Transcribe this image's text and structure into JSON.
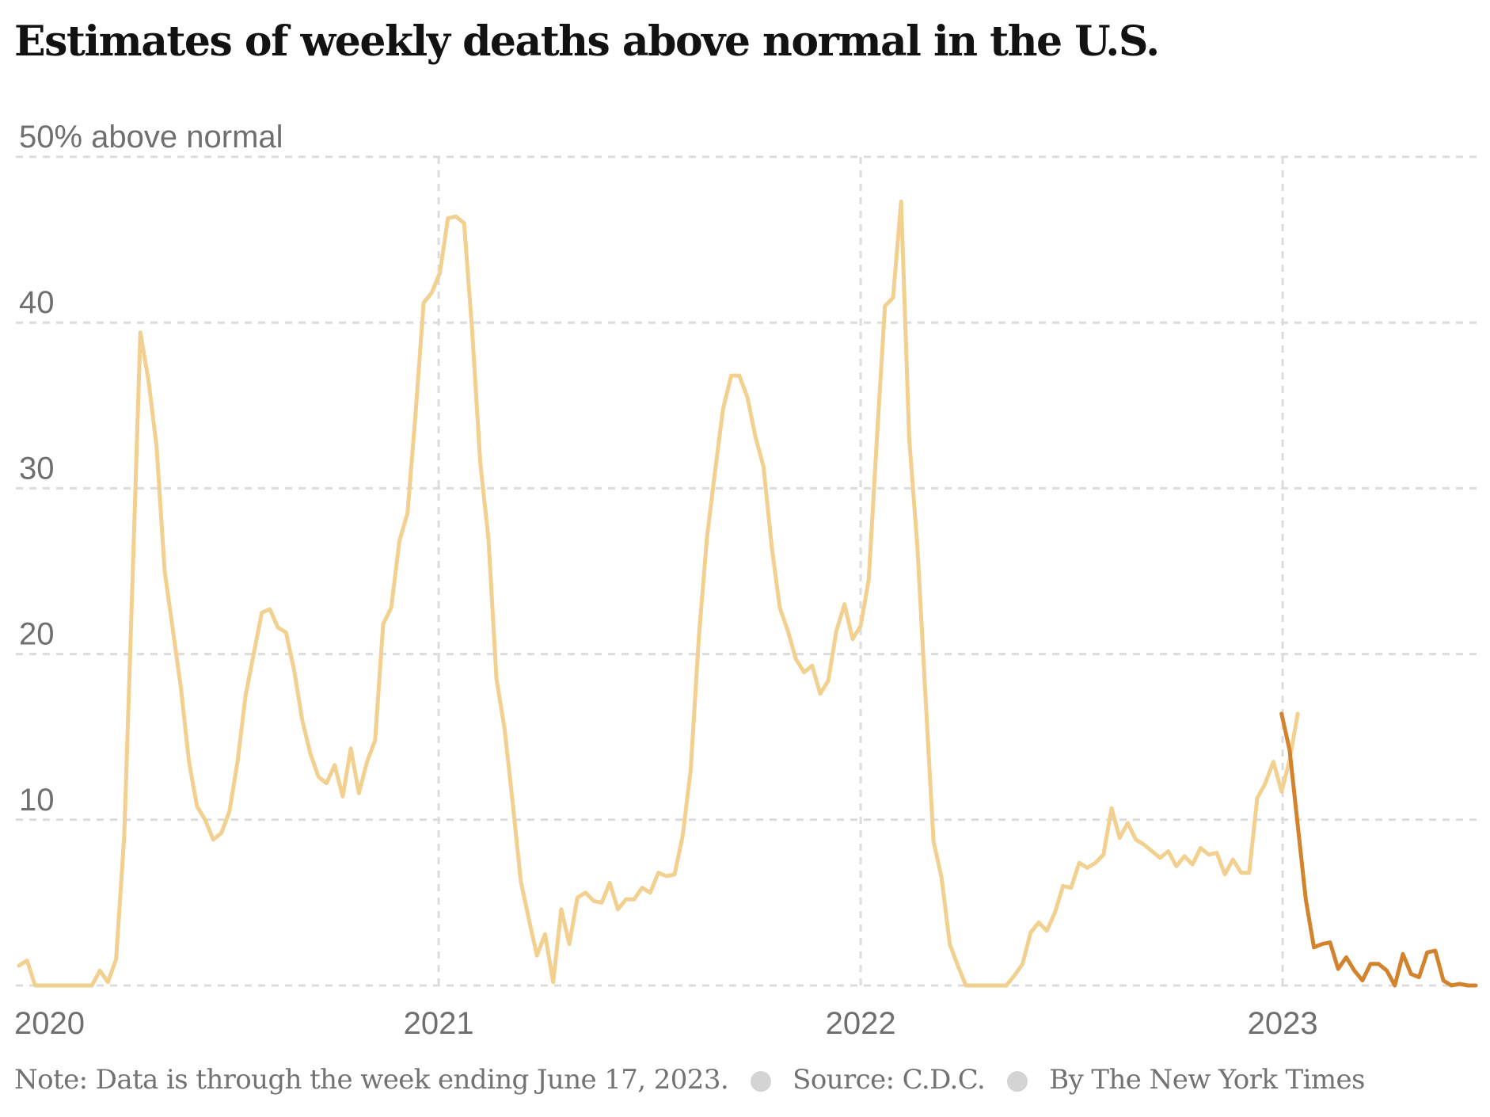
{
  "header": {
    "title": "Estimates of weekly deaths above normal in the U.S."
  },
  "footer": {
    "note": "Note: Data is through the week ending June 17, 2023.",
    "source": "Source: C.D.C.",
    "byline": "By The New York Times"
  },
  "chart_data": {
    "type": "line",
    "title": "Estimates of weekly deaths above normal in the U.S.",
    "ylabel": "% above normal",
    "ylim": [
      0,
      50
    ],
    "yticks": [
      {
        "value": 50,
        "label": "50% above normal"
      },
      {
        "value": 40,
        "label": "40"
      },
      {
        "value": 30,
        "label": "30"
      },
      {
        "value": 20,
        "label": "20"
      },
      {
        "value": 10,
        "label": "10"
      }
    ],
    "xlim": [
      "2020-01-04",
      "2023-06-17"
    ],
    "xticks": [
      {
        "date": "2020-01-01",
        "label": "2020"
      },
      {
        "date": "2021-01-01",
        "label": "2021"
      },
      {
        "date": "2022-01-01",
        "label": "2022"
      },
      {
        "date": "2023-01-01",
        "label": "2023"
      }
    ],
    "grid": true,
    "colors": {
      "earlier": "#f2d08f",
      "latest": "#d4832d",
      "grid": "#dcdcdc"
    },
    "series": [
      {
        "key": "earlier",
        "start": "2020-01-04",
        "interval_days": 7,
        "values": [
          1.2,
          1.5,
          0,
          0,
          0,
          0,
          0,
          0,
          0,
          0,
          0.9,
          0.2,
          1.6,
          9,
          24,
          39.4,
          36.5,
          32.5,
          25,
          21.5,
          18,
          13.5,
          10.8,
          10,
          8.8,
          9.2,
          10.5,
          13.5,
          17.5,
          20,
          22.5,
          22.7,
          21.6,
          21.3,
          19,
          16,
          14,
          12.6,
          12.2,
          13.3,
          11.4,
          14.3,
          11.6,
          13.5,
          14.8,
          21.8,
          22.8,
          26.8,
          28.5,
          34.5,
          41.2,
          41.8,
          43,
          46.3,
          46.4,
          46,
          39.5,
          31.5,
          27,
          18.5,
          15.5,
          11,
          6.3,
          4,
          1.8,
          3.1,
          0.2,
          4.6,
          2.5,
          5.3,
          5.6,
          5.1,
          5,
          6.2,
          4.6,
          5.2,
          5.2,
          5.9,
          5.6,
          6.8,
          6.6,
          6.7,
          9,
          13,
          21,
          27,
          31,
          34.8,
          36.8,
          36.8,
          35.5,
          33.1,
          31.3,
          26.5,
          22.8,
          21.4,
          19.7,
          18.9,
          19.3,
          17.6,
          18.4,
          21.4,
          23,
          20.9,
          21.7,
          24.5,
          33,
          41,
          41.5,
          47.3,
          33,
          26.5,
          17.5,
          8.7,
          6.5,
          2.5,
          1.2,
          0,
          0,
          0,
          0,
          0,
          0,
          0.6,
          1.3,
          3.2,
          3.8,
          3.3,
          4.4,
          6,
          5.9,
          7.4,
          7.1,
          7.4,
          7.9,
          10.7,
          8.9,
          9.8,
          8.8,
          8.5,
          8.1,
          7.7,
          8.1,
          7.2,
          7.8,
          7.3,
          8.3,
          7.9,
          8,
          6.7,
          7.6,
          6.8,
          6.8,
          11.3,
          12.2,
          13.5,
          11.7,
          13.6,
          16.4
        ]
      },
      {
        "key": "latest",
        "start": "2022-12-31",
        "interval_days": 7,
        "values": [
          16.4,
          14.2,
          9.7,
          5.2,
          2.3,
          2.5,
          2.6,
          1,
          1.7,
          0.9,
          0.3,
          1.3,
          1.3,
          0.9,
          0,
          1.9,
          0.7,
          0.5,
          2,
          2.1,
          0.3,
          0,
          0.1,
          0,
          0
        ]
      }
    ]
  }
}
